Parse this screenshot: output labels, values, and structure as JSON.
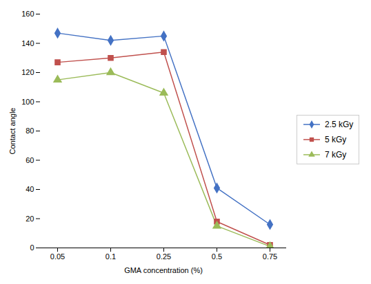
{
  "chart_data": {
    "type": "line",
    "xlabel": "GMA concentration (%)",
    "ylabel": "Contact angle",
    "categories": [
      "0.05",
      "0.1",
      "0.25",
      "0.5",
      "0.75"
    ],
    "series": [
      {
        "name": "2.5 kGy",
        "color": "#4472C4",
        "marker": "diamond",
        "values": [
          147,
          142,
          145,
          41,
          16
        ]
      },
      {
        "name": "5 kGy",
        "color": "#C0504D",
        "marker": "square",
        "values": [
          127,
          130,
          134,
          18,
          2
        ]
      },
      {
        "name": "7 kGy",
        "color": "#9BBB59",
        "marker": "triangle",
        "values": [
          115,
          120,
          106,
          15,
          1
        ]
      }
    ],
    "ylim": [
      0,
      160
    ],
    "yticks": [
      0,
      20,
      40,
      60,
      80,
      100,
      120,
      140,
      160
    ],
    "legend": "right"
  }
}
